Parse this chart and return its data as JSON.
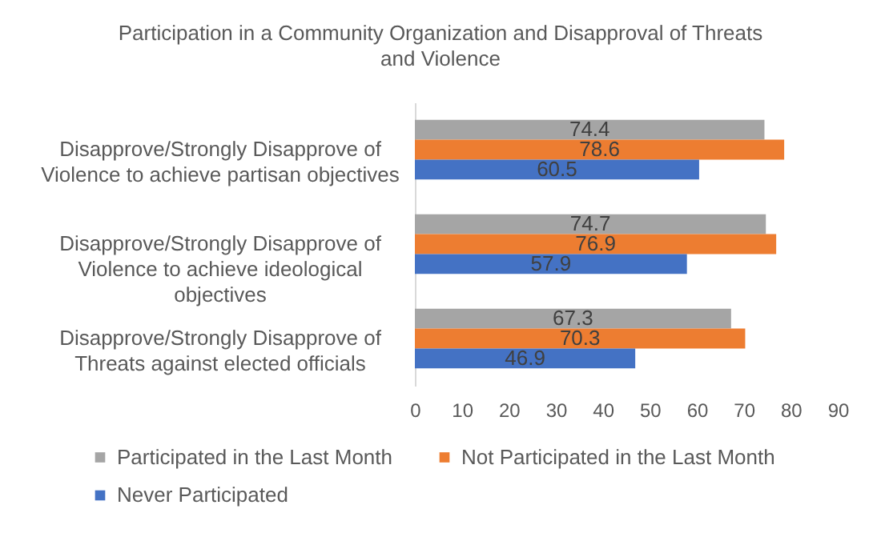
{
  "chart_data": {
    "type": "bar",
    "orientation": "horizontal",
    "title": "Participation in a Community Organization and Disapproval of Threats and Violence",
    "categories": [
      "Disapprove/Strongly Disapprove of Violence to achieve partisan objectives",
      "Disapprove/Strongly Disapprove of Violence to achieve ideological objectives",
      "Disapprove/Strongly Disapprove of Threats against elected officials"
    ],
    "series": [
      {
        "name": "Participated in the Last Month",
        "color": "#a5a5a5",
        "values": [
          74.4,
          74.7,
          67.3
        ]
      },
      {
        "name": "Not Participated in the Last Month",
        "color": "#ed7d31",
        "values": [
          78.6,
          76.9,
          70.3
        ]
      },
      {
        "name": "Never Participated",
        "color": "#4472c4",
        "values": [
          60.5,
          57.9,
          46.9
        ]
      }
    ],
    "xlim": [
      0,
      90
    ],
    "xticks": [
      0,
      10,
      20,
      30,
      40,
      50,
      60,
      70,
      80,
      90
    ],
    "legend": "bottom",
    "data_labels": true
  }
}
